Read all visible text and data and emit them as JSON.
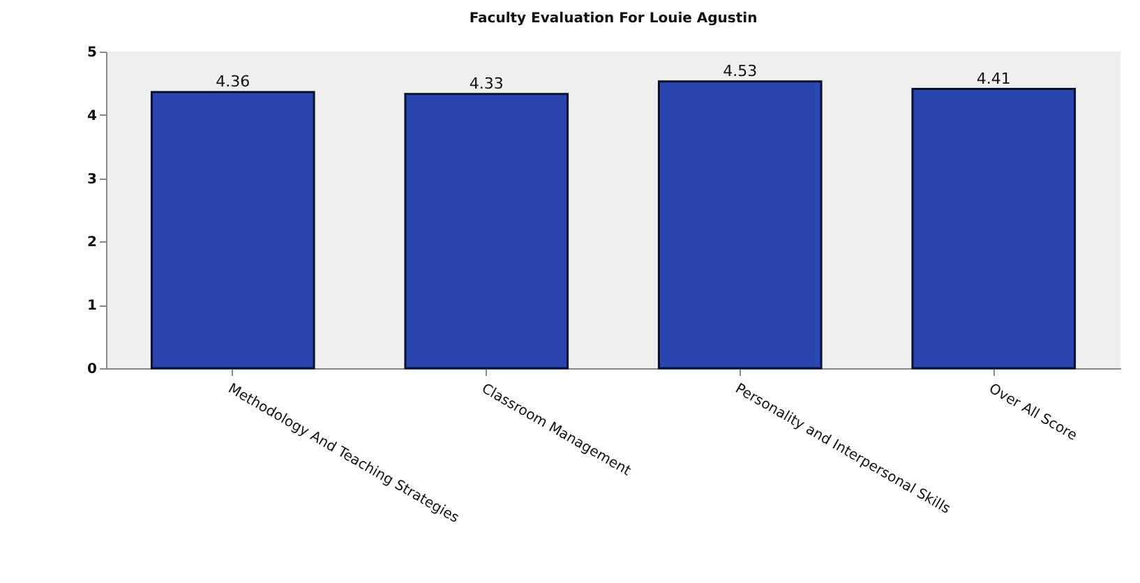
{
  "chart_data": {
    "type": "bar",
    "title": "Faculty Evaluation For Louie Agustin",
    "categories": [
      "Methodology And Teaching Strategies",
      "Classroom Management",
      "Personality and Interpersonal Skills",
      "Over All Score"
    ],
    "values": [
      4.36,
      4.33,
      4.53,
      4.41
    ],
    "color": "#2b45b0",
    "ylim": [
      0,
      5
    ],
    "yticks": [
      0,
      1,
      2,
      3,
      4,
      5
    ],
    "data_labels": true,
    "grid": false
  }
}
